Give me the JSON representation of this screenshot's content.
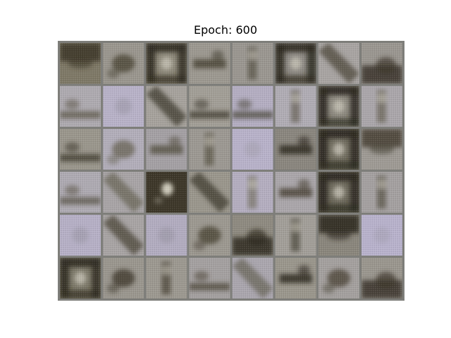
{
  "figure": {
    "title": "Epoch: 600"
  },
  "grid": {
    "rows": 6,
    "cols": 8,
    "separator_color": "#7e7e7a"
  },
  "palette": {
    "dark": "#3a3428",
    "mid": "#8a8a80",
    "light": "#b4b0b6",
    "lavender": "#b9b3cc",
    "gray": "#9a9a94"
  },
  "samples": [
    {
      "name": "sample-r1-c1",
      "base": "#7e7866",
      "dark": "#3d3628",
      "pattern": "top-dark"
    },
    {
      "name": "sample-r1-c2",
      "base": "#9a968e",
      "dark": "#4a4536",
      "pattern": "blob-center"
    },
    {
      "name": "sample-r1-c3",
      "base": "#8a8576",
      "dark": "#2e2a20",
      "pattern": "frame"
    },
    {
      "name": "sample-r1-c4",
      "base": "#9c9890",
      "dark": "#4a4436",
      "pattern": "band-mid"
    },
    {
      "name": "sample-r1-c5",
      "base": "#9a9690",
      "dark": "#5a5448",
      "pattern": "vertical"
    },
    {
      "name": "sample-r1-c6",
      "base": "#8a8680",
      "dark": "#2c281e",
      "pattern": "frame"
    },
    {
      "name": "sample-r1-c7",
      "base": "#a8a4a2",
      "dark": "#4c4638",
      "pattern": "diag"
    },
    {
      "name": "sample-r1-c8",
      "base": "#9a9690",
      "dark": "#3a3428",
      "pattern": "bottom-dark"
    },
    {
      "name": "sample-r2-c1",
      "base": "#aeaab0",
      "dark": "#5c5648",
      "pattern": "band-low"
    },
    {
      "name": "sample-r2-c2",
      "base": "#b8b2c8",
      "dark": "#8a8690",
      "pattern": "flat"
    },
    {
      "name": "sample-r2-c3",
      "base": "#a6a29c",
      "dark": "#3e3a2c",
      "pattern": "diag"
    },
    {
      "name": "sample-r2-c4",
      "base": "#a29e96",
      "dark": "#3e3a2e",
      "pattern": "band-low"
    },
    {
      "name": "sample-r2-c5",
      "base": "#b4aec2",
      "dark": "#4e4a3e",
      "pattern": "band-low"
    },
    {
      "name": "sample-r2-c6",
      "base": "#b0acb4",
      "dark": "#6a6458",
      "pattern": "vertical"
    },
    {
      "name": "sample-r2-c7",
      "base": "#8a867c",
      "dark": "#2a261c",
      "pattern": "frame"
    },
    {
      "name": "sample-r2-c8",
      "base": "#aaa6aa",
      "dark": "#6a6456",
      "pattern": "vertical"
    },
    {
      "name": "sample-r3-c1",
      "base": "#9a968c",
      "dark": "#3a3428",
      "pattern": "band-low"
    },
    {
      "name": "sample-r3-c2",
      "base": "#b2aeba",
      "dark": "#6a6658",
      "pattern": "blob-center"
    },
    {
      "name": "sample-r3-c3",
      "base": "#a4a0a4",
      "dark": "#5a5648",
      "pattern": "band-mid"
    },
    {
      "name": "sample-r3-c4",
      "base": "#9c9892",
      "dark": "#5c5648",
      "pattern": "vertical"
    },
    {
      "name": "sample-r3-c5",
      "base": "#b8b2ca",
      "dark": "#9a96a0",
      "pattern": "flat"
    },
    {
      "name": "sample-r3-c6",
      "base": "#8a867e",
      "dark": "#2e2a20",
      "pattern": "band-mid"
    },
    {
      "name": "sample-r3-c7",
      "base": "#6e6a5c",
      "dark": "#2a261c",
      "pattern": "frame"
    },
    {
      "name": "sample-r3-c8",
      "base": "#9e9a94",
      "dark": "#4a4436",
      "pattern": "top-dark"
    },
    {
      "name": "sample-r4-c1",
      "base": "#aeaab2",
      "dark": "#5a5446",
      "pattern": "band-low"
    },
    {
      "name": "sample-r4-c2",
      "base": "#a8a4a6",
      "dark": "#6a6656",
      "pattern": "diag"
    },
    {
      "name": "sample-r4-c3",
      "base": "#3c3628",
      "dark": "#2a2418",
      "pattern": "center-light"
    },
    {
      "name": "sample-r4-c4",
      "base": "#9a968c",
      "dark": "#3e3a2c",
      "pattern": "diag"
    },
    {
      "name": "sample-r4-c5",
      "base": "#b4aec0",
      "dark": "#7a766a",
      "pattern": "vertical"
    },
    {
      "name": "sample-r4-c6",
      "base": "#aaa6aa",
      "dark": "#4c4638",
      "pattern": "band-mid"
    },
    {
      "name": "sample-r4-c7",
      "base": "#6a6658",
      "dark": "#2a261c",
      "pattern": "frame"
    },
    {
      "name": "sample-r4-c8",
      "base": "#a4a0a0",
      "dark": "#5a5446",
      "pattern": "vertical"
    },
    {
      "name": "sample-r5-c1",
      "base": "#b6b0c6",
      "dark": "#8a8690",
      "pattern": "flat"
    },
    {
      "name": "sample-r5-c2",
      "base": "#a8a4a4",
      "dark": "#4a4436",
      "pattern": "diag"
    },
    {
      "name": "sample-r5-c3",
      "base": "#b2acc0",
      "dark": "#8a8690",
      "pattern": "flat"
    },
    {
      "name": "sample-r5-c4",
      "base": "#9c9890",
      "dark": "#4a4436",
      "pattern": "blob-center"
    },
    {
      "name": "sample-r5-c5",
      "base": "#8e8a80",
      "dark": "#2e2a20",
      "pattern": "bottom-dark"
    },
    {
      "name": "sample-r5-c6",
      "base": "#a29e98",
      "dark": "#4e4a3c",
      "pattern": "vertical"
    },
    {
      "name": "sample-r5-c7",
      "base": "#8a867c",
      "dark": "#2c281e",
      "pattern": "top-dark"
    },
    {
      "name": "sample-r5-c8",
      "base": "#b8b2cc",
      "dark": "#9a96a2",
      "pattern": "flat"
    },
    {
      "name": "sample-r6-c1",
      "base": "#7a7666",
      "dark": "#2e2a20",
      "pattern": "frame"
    },
    {
      "name": "sample-r6-c2",
      "base": "#9a968e",
      "dark": "#3e3a2c",
      "pattern": "blob-center"
    },
    {
      "name": "sample-r6-c3",
      "base": "#9c9890",
      "dark": "#4a4436",
      "pattern": "vertical"
    },
    {
      "name": "sample-r6-c4",
      "base": "#a4a0a0",
      "dark": "#4a4436",
      "pattern": "band-low"
    },
    {
      "name": "sample-r6-c5",
      "base": "#aaa6ae",
      "dark": "#6a6658",
      "pattern": "diag"
    },
    {
      "name": "sample-r6-c6",
      "base": "#9a968c",
      "dark": "#2e2a20",
      "pattern": "band-mid"
    },
    {
      "name": "sample-r6-c7",
      "base": "#a4a09e",
      "dark": "#4c4638",
      "pattern": "blob-center"
    },
    {
      "name": "sample-r6-c8",
      "base": "#9a968e",
      "dark": "#3a3428",
      "pattern": "bottom-dark"
    }
  ]
}
